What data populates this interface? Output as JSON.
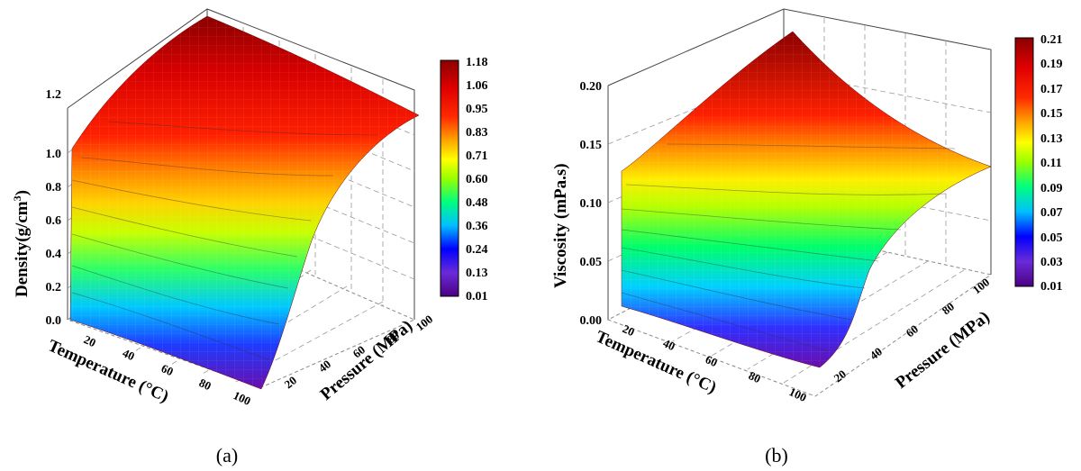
{
  "chart_data": [
    {
      "type": "surface3d",
      "panel_label": "(a)",
      "zlabel": "Density(g/cm",
      "zlabel_sup": "3",
      "zlabel_close": ")",
      "xlabel": "Temperature (°C)",
      "ylabel": "Pressure (MPa)",
      "x_ticks": [
        "20",
        "40",
        "60",
        "80",
        "100"
      ],
      "y_ticks": [
        "20",
        "40",
        "60",
        "80",
        "100"
      ],
      "z_ticks": [
        "0.0",
        "0.2",
        "0.4",
        "0.6",
        "0.8",
        "1.0",
        "1.2"
      ],
      "xlim": [
        0,
        100
      ],
      "ylim": [
        0,
        100
      ],
      "zlim": [
        0,
        1.2
      ],
      "colorbar_ticks": [
        "1.18",
        "1.06",
        "0.95",
        "0.83",
        "0.71",
        "0.60",
        "0.48",
        "0.36",
        "0.24",
        "0.13",
        "0.01"
      ],
      "colorbar_range": [
        0.01,
        1.18
      ],
      "colormap": [
        "#4b0082",
        "#8a2be2",
        "#0000ff",
        "#00bfff",
        "#00ff7f",
        "#7fff00",
        "#ffff00",
        "#ffa500",
        "#ff4500",
        "#ff0000",
        "#8b0000"
      ],
      "surface_samples": {
        "temperature_C": [
          0,
          20,
          40,
          60,
          80,
          100
        ],
        "pressure_MPa": [
          0,
          20,
          40,
          60,
          80,
          100
        ],
        "density_at_T0": [
          0.85,
          0.95,
          1.02,
          1.08,
          1.13,
          1.18
        ],
        "density_at_T100": [
          0.02,
          0.45,
          0.78,
          0.92,
          1.0,
          1.06
        ]
      }
    },
    {
      "type": "surface3d",
      "panel_label": "(b)",
      "zlabel": "Viscosity (mPa.s)",
      "xlabel": "Temperature (°C)",
      "ylabel": "Pressure (MPa)",
      "x_ticks": [
        "20",
        "40",
        "60",
        "80",
        "100"
      ],
      "y_ticks": [
        "20",
        "40",
        "60",
        "80",
        "100"
      ],
      "z_ticks": [
        "0.00",
        "0.05",
        "0.10",
        "0.15",
        "0.20"
      ],
      "xlim": [
        0,
        100
      ],
      "ylim": [
        0,
        100
      ],
      "zlim": [
        0,
        0.22
      ],
      "colorbar_ticks": [
        "0.21",
        "0.19",
        "0.17",
        "0.15",
        "0.13",
        "0.11",
        "0.09",
        "0.07",
        "0.05",
        "0.03",
        "0.01"
      ],
      "colorbar_range": [
        0.01,
        0.21
      ],
      "colormap": [
        "#4b0082",
        "#8a2be2",
        "#0000ff",
        "#00bfff",
        "#00ff7f",
        "#7fff00",
        "#ffff00",
        "#ffa500",
        "#ff4500",
        "#ff0000",
        "#8b0000"
      ],
      "surface_samples": {
        "temperature_C": [
          0,
          20,
          40,
          60,
          80,
          100
        ],
        "pressure_MPa": [
          0,
          20,
          40,
          60,
          80,
          100
        ],
        "viscosity_at_T0": [
          0.09,
          0.12,
          0.15,
          0.17,
          0.19,
          0.21
        ],
        "viscosity_at_T100": [
          0.005,
          0.03,
          0.06,
          0.08,
          0.1,
          0.12
        ]
      }
    }
  ]
}
